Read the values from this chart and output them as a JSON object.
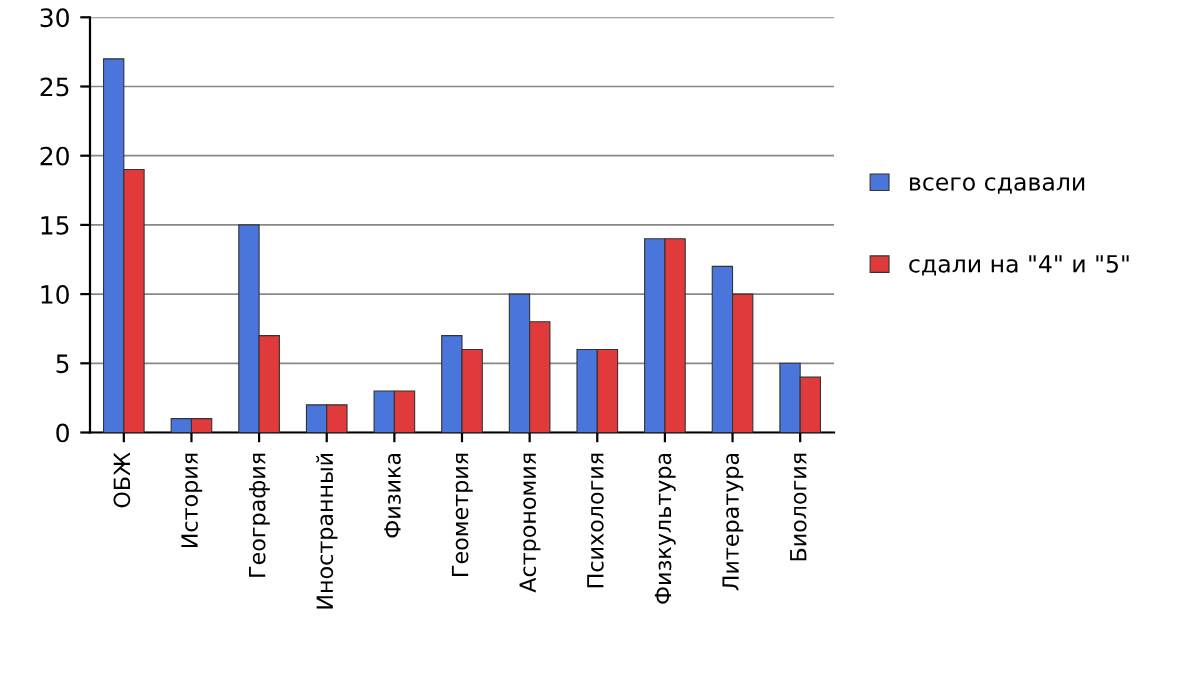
{
  "chart_data": {
    "type": "bar",
    "categories": [
      "ОБЖ",
      "История",
      "География",
      "Иностранный",
      "Физика",
      "Геометрия",
      "Астрономия",
      "Психология",
      "Физкультура",
      "Литература",
      "Биология"
    ],
    "series": [
      {
        "name": "всего сдавали",
        "color": "#4a76dc",
        "values": [
          27,
          1,
          15,
          2,
          3,
          7,
          10,
          6,
          14,
          12,
          5
        ]
      },
      {
        "name": "сдали на \"4\" и \"5\"",
        "color": "#e03a3a",
        "values": [
          19,
          1,
          7,
          2,
          3,
          6,
          8,
          6,
          14,
          10,
          4
        ]
      }
    ],
    "ylim": [
      0,
      30
    ],
    "yticks": [
      0,
      5,
      10,
      15,
      20,
      25,
      30
    ],
    "grid": "y",
    "legend": "right"
  }
}
